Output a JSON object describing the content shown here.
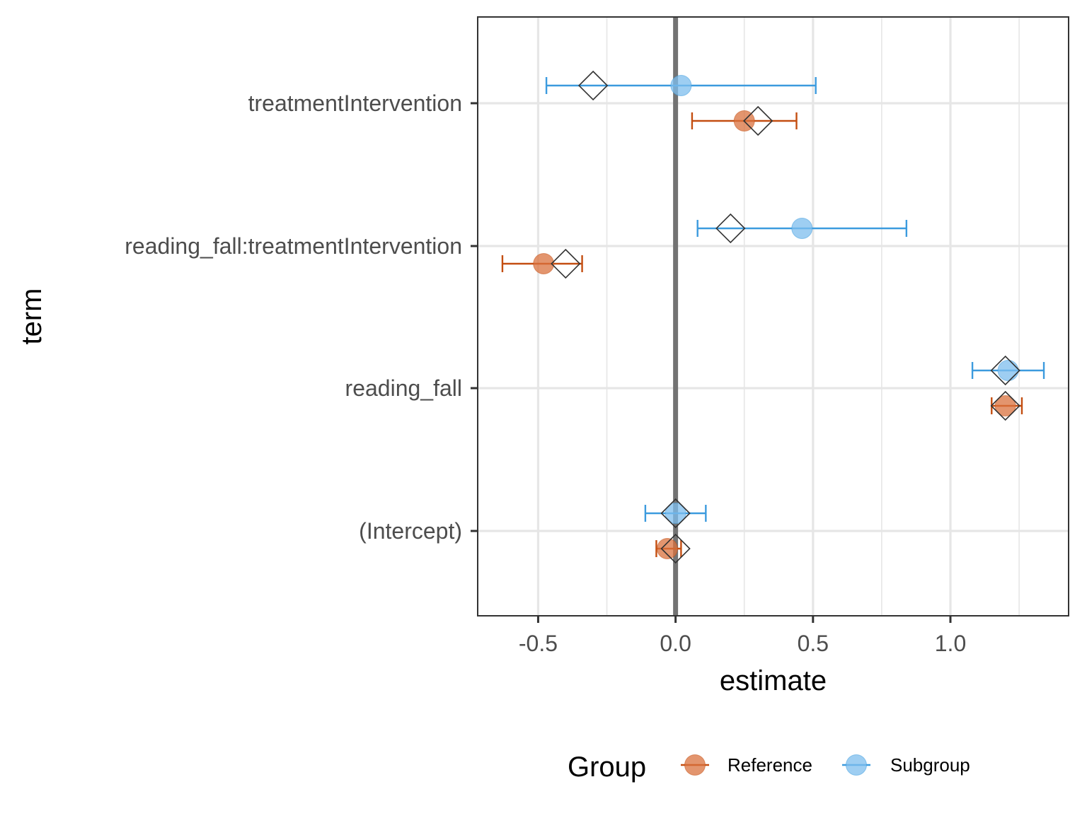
{
  "colors": {
    "reference": "#C44E11",
    "reference_fill": "#D9713D",
    "subgroup": "#3C9BDE",
    "subgroup_fill": "#7DBDED",
    "grid": "#E6E6E6",
    "zero_line": "#737373",
    "panel_border": "#333333",
    "diamond_stroke": "#333333"
  },
  "chart_data": {
    "type": "forest",
    "xlabel": "estimate",
    "ylabel": "term",
    "xlim": [
      -0.72,
      1.43
    ],
    "x_ticks": [
      -0.5,
      0.0,
      0.5,
      1.0
    ],
    "x_tick_labels": [
      "-0.5",
      "0.0",
      "0.5",
      "1.0"
    ],
    "reference_line_x": 0,
    "grid": true,
    "terms": [
      "treatmentIntervention",
      "reading_fall:treatmentIntervention",
      "reading_fall",
      "(Intercept)"
    ],
    "legend": {
      "title": "Group",
      "position": "bottom",
      "entries": [
        "Reference",
        "Subgroup"
      ]
    },
    "series": [
      {
        "name": "Subgroup",
        "color_key": "subgroup",
        "points": [
          {
            "term": "treatmentIntervention",
            "estimate": 0.02,
            "low": -0.47,
            "high": 0.51,
            "diamond": -0.3
          },
          {
            "term": "reading_fall:treatmentIntervention",
            "estimate": 0.46,
            "low": 0.08,
            "high": 0.84,
            "diamond": 0.2
          },
          {
            "term": "reading_fall",
            "estimate": 1.21,
            "low": 1.08,
            "high": 1.34,
            "diamond": 1.2
          },
          {
            "term": "(Intercept)",
            "estimate": 0.0,
            "low": -0.11,
            "high": 0.11,
            "diamond": 0.0
          }
        ]
      },
      {
        "name": "Reference",
        "color_key": "reference",
        "points": [
          {
            "term": "treatmentIntervention",
            "estimate": 0.25,
            "low": 0.06,
            "high": 0.44,
            "diamond": 0.3
          },
          {
            "term": "reading_fall:treatmentIntervention",
            "estimate": -0.48,
            "low": -0.63,
            "high": -0.34,
            "diamond": -0.4
          },
          {
            "term": "reading_fall",
            "estimate": 1.2,
            "low": 1.15,
            "high": 1.26,
            "diamond": 1.2
          },
          {
            "term": "(Intercept)",
            "estimate": -0.03,
            "low": -0.07,
            "high": 0.02,
            "diamond": 0.0
          }
        ]
      }
    ]
  }
}
